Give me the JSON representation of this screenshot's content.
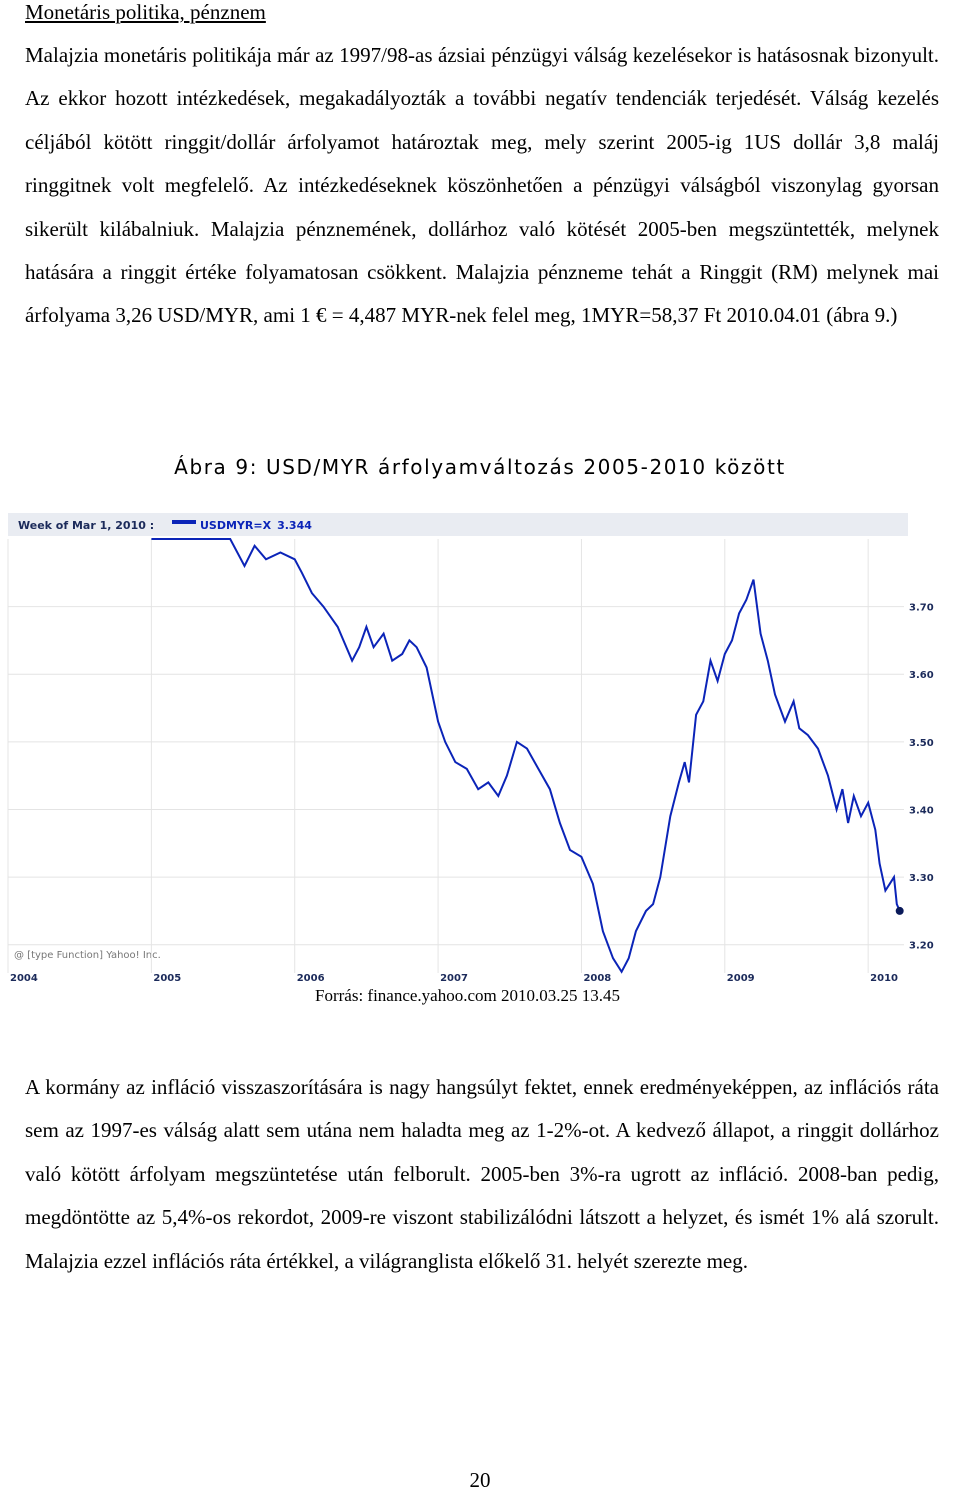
{
  "section": {
    "heading": "Monetáris politika, pénznem"
  },
  "paragraph1": "Malajzia monetáris politikája már az 1997/98-as ázsiai pénzügyi válság kezelésekor is hatásosnak bizonyult. Az ekkor hozott intézkedések, megakadályozták a további negatív tendenciák terjedését. Válság kezelés céljából kötött ringgit/dollár árfolyamot határoztak meg, mely szerint 2005-ig 1US dollár 3,8 maláj ringgitnek volt megfelelő. Az intézkedéseknek köszönhetően a pénzügyi válságból viszonylag gyorsan sikerült kilábalniuk. Malajzia pénznemének, dollárhoz való kötését 2005-ben megszüntették, melynek hatására a ringgit értéke folyamatosan csökkent. Malajzia pénzneme tehát a Ringgit (RM) melynek mai árfolyama 3,26 USD/MYR, ami 1 € = 4,487 MYR-nek felel meg, 1MYR=58,37 Ft 2010.04.01 (ábra 9.)",
  "figure": {
    "caption": "Ábra 9: USD/MYR árfolyamváltozás 2005-2010 között",
    "source": "Forrás: finance.yahoo.com 2010.03.25 13.45"
  },
  "chart_data": {
    "type": "line",
    "header_date": "Week of Mar 1, 2010 :",
    "series": [
      {
        "name": "USDMYR=X",
        "last_value": "3.344"
      }
    ],
    "watermark": "@ [type Function] Yahoo! Inc.",
    "x_tick_labels": [
      "2004",
      "2005",
      "2006",
      "2007",
      "2008",
      "2009",
      "2010"
    ],
    "y_tick_labels": [
      "3.70",
      "3.60",
      "3.50",
      "3.40",
      "3.30",
      "3.20"
    ],
    "ylim": [
      3.17,
      3.8
    ],
    "xlim": [
      2004.0,
      2010.25
    ],
    "points": [
      [
        2005.0,
        3.8
      ],
      [
        2005.3,
        3.8
      ],
      [
        2005.55,
        3.8
      ],
      [
        2005.65,
        3.76
      ],
      [
        2005.72,
        3.79
      ],
      [
        2005.8,
        3.77
      ],
      [
        2005.9,
        3.78
      ],
      [
        2006.0,
        3.77
      ],
      [
        2006.05,
        3.75
      ],
      [
        2006.12,
        3.72
      ],
      [
        2006.2,
        3.7
      ],
      [
        2006.3,
        3.67
      ],
      [
        2006.4,
        3.62
      ],
      [
        2006.45,
        3.64
      ],
      [
        2006.5,
        3.67
      ],
      [
        2006.55,
        3.64
      ],
      [
        2006.62,
        3.66
      ],
      [
        2006.68,
        3.62
      ],
      [
        2006.75,
        3.63
      ],
      [
        2006.8,
        3.65
      ],
      [
        2006.85,
        3.64
      ],
      [
        2006.92,
        3.61
      ],
      [
        2007.0,
        3.53
      ],
      [
        2007.05,
        3.5
      ],
      [
        2007.12,
        3.47
      ],
      [
        2007.2,
        3.46
      ],
      [
        2007.28,
        3.43
      ],
      [
        2007.35,
        3.44
      ],
      [
        2007.42,
        3.42
      ],
      [
        2007.48,
        3.45
      ],
      [
        2007.55,
        3.5
      ],
      [
        2007.62,
        3.49
      ],
      [
        2007.7,
        3.46
      ],
      [
        2007.78,
        3.43
      ],
      [
        2007.85,
        3.38
      ],
      [
        2007.92,
        3.34
      ],
      [
        2008.0,
        3.33
      ],
      [
        2008.08,
        3.29
      ],
      [
        2008.15,
        3.22
      ],
      [
        2008.22,
        3.18
      ],
      [
        2008.28,
        3.16
      ],
      [
        2008.33,
        3.18
      ],
      [
        2008.38,
        3.22
      ],
      [
        2008.45,
        3.25
      ],
      [
        2008.5,
        3.26
      ],
      [
        2008.55,
        3.3
      ],
      [
        2008.62,
        3.39
      ],
      [
        2008.68,
        3.44
      ],
      [
        2008.72,
        3.47
      ],
      [
        2008.75,
        3.44
      ],
      [
        2008.8,
        3.54
      ],
      [
        2008.85,
        3.56
      ],
      [
        2008.9,
        3.62
      ],
      [
        2008.95,
        3.59
      ],
      [
        2009.0,
        3.63
      ],
      [
        2009.05,
        3.65
      ],
      [
        2009.1,
        3.69
      ],
      [
        2009.15,
        3.71
      ],
      [
        2009.2,
        3.74
      ],
      [
        2009.25,
        3.66
      ],
      [
        2009.3,
        3.62
      ],
      [
        2009.35,
        3.57
      ],
      [
        2009.42,
        3.53
      ],
      [
        2009.48,
        3.56
      ],
      [
        2009.52,
        3.52
      ],
      [
        2009.58,
        3.51
      ],
      [
        2009.65,
        3.49
      ],
      [
        2009.72,
        3.45
      ],
      [
        2009.78,
        3.4
      ],
      [
        2009.82,
        3.43
      ],
      [
        2009.86,
        3.38
      ],
      [
        2009.9,
        3.42
      ],
      [
        2009.95,
        3.39
      ],
      [
        2010.0,
        3.41
      ],
      [
        2010.05,
        3.37
      ],
      [
        2010.08,
        3.32
      ],
      [
        2010.12,
        3.28
      ],
      [
        2010.15,
        3.29
      ],
      [
        2010.18,
        3.3
      ],
      [
        2010.2,
        3.26
      ],
      [
        2010.22,
        3.25
      ]
    ],
    "colors": {
      "line": "#0b24b8",
      "grid": "#e4e4e4",
      "header": "#e9ecf2"
    }
  },
  "paragraph2": "A kormány az infláció visszaszorítására is nagy hangsúlyt fektet, ennek eredményeképpen, az inflációs ráta sem az 1997-es válság alatt sem utána nem haladta meg az 1-2%-ot. A kedvező állapot, a ringgit dollárhoz való kötött árfolyam megszüntetése után felborult. 2005-ben 3%-ra ugrott az infláció. 2008-ban pedig, megdöntötte az 5,4%-os rekordot, 2009-re viszont stabilizálódni látszott a helyzet, és ismét 1% alá szorult. Malajzia ezzel inflációs ráta értékkel, a világranglista előkelő 31. helyét szerezte meg.",
  "page": {
    "number": "20"
  }
}
